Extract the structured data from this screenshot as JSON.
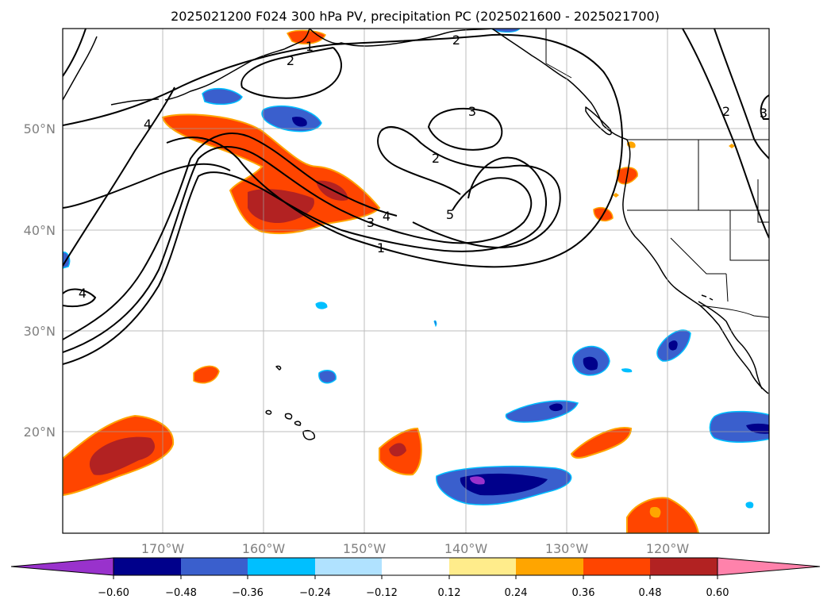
{
  "title": "2025021200 F024 300 hPa PV, precipitation PC (2025021600 - 2025021700)",
  "map": {
    "lat_labels": [
      "50°N",
      "40°N",
      "30°N",
      "20°N"
    ],
    "lon_labels": [
      "170°W",
      "160°W",
      "150°W",
      "140°W",
      "130°W",
      "120°W"
    ],
    "contour_labels": [
      "2",
      "2",
      "1",
      "4",
      "3",
      "2",
      "5",
      "4",
      "3",
      "1",
      "4",
      "2",
      "3"
    ],
    "contour_color": "#000000",
    "grid_color": "#a0a0a0"
  },
  "colorbar": {
    "tick_labels": [
      "−0.60",
      "−0.48",
      "−0.36",
      "−0.24",
      "−0.12",
      "0.12",
      "0.24",
      "0.36",
      "0.48",
      "0.60"
    ],
    "colors": [
      "#9932cc",
      "#00008b",
      "#3a5fcd",
      "#00bfff",
      "#b0e2ff",
      "#ffffff",
      "#ffec8b",
      "#ffa500",
      "#ff4500",
      "#b22222",
      "#ff82ab"
    ]
  }
}
